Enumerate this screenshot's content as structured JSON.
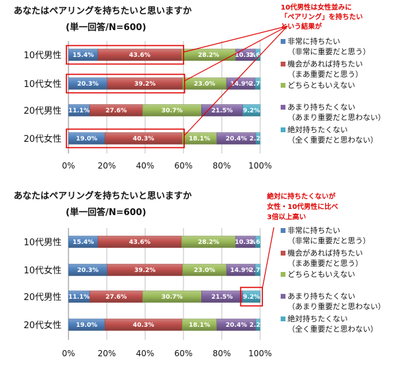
{
  "charts": [
    {
      "type": "bar",
      "stacked": true,
      "orientation": "horizontal",
      "title": "あなたはペアリングを持ちたいと思いますか",
      "subtitle": "(単一回答/N=600)",
      "categories": [
        "10代男性",
        "10代女性",
        "20代男性",
        "20代女性"
      ],
      "series": [
        {
          "name": "非常に持ちたい",
          "sub": "（非常に重要だと思う）",
          "color": "#4f81bd",
          "values": [
            15.4,
            20.3,
            11.1,
            19.0
          ]
        },
        {
          "name": "機会があれば持ちたい",
          "sub": "（まあ重要だと思う）",
          "color": "#c0504d",
          "values": [
            43.6,
            39.2,
            27.6,
            40.3
          ]
        },
        {
          "name": "どちらともいえない",
          "sub": "",
          "color": "#9bbb59",
          "values": [
            28.2,
            23.0,
            30.7,
            18.1
          ]
        },
        {
          "name": "あまり持ちたくない",
          "sub": "（あまり重要だと思わない）",
          "color": "#8064a2",
          "values": [
            10.3,
            14.9,
            21.5,
            20.4
          ]
        },
        {
          "name": "絶対持ちたくない",
          "sub": "（全く重要だと思わない）",
          "color": "#4bacc6",
          "values": [
            2.6,
            2.7,
            9.2,
            2.2
          ]
        }
      ],
      "xlim": [
        0,
        100
      ],
      "xticks": [
        "0%",
        "20%",
        "40%",
        "60%",
        "80%",
        "100%"
      ],
      "annotation": {
        "lines": [
          "10代男性は女性並みに",
          "「ペアリング」を持ちたい",
          "という結果が"
        ]
      },
      "highlight_series": [
        0,
        1
      ],
      "highlight_rows": [
        0,
        1,
        3
      ]
    },
    {
      "type": "bar",
      "stacked": true,
      "orientation": "horizontal",
      "title": "あなたはペアリングを持ちたいと思いますか",
      "subtitle": "(単一回答/N=600)",
      "categories": [
        "10代男性",
        "10代女性",
        "20代男性",
        "20代女性"
      ],
      "series": [
        {
          "name": "非常に持ちたい",
          "sub": "（非常に重要だと思う）",
          "color": "#4f81bd",
          "values": [
            15.4,
            20.3,
            11.1,
            19.0
          ]
        },
        {
          "name": "機会があれば持ちたい",
          "sub": "（まあ重要だと思う）",
          "color": "#c0504d",
          "values": [
            43.6,
            39.2,
            27.6,
            40.3
          ]
        },
        {
          "name": "どちらともいえない",
          "sub": "",
          "color": "#9bbb59",
          "values": [
            28.2,
            23.0,
            30.7,
            18.1
          ]
        },
        {
          "name": "あまり持ちたくない",
          "sub": "（あまり重要だと思わない）",
          "color": "#8064a2",
          "values": [
            10.3,
            14.9,
            21.5,
            20.4
          ]
        },
        {
          "name": "絶対持ちたくない",
          "sub": "（全く重要だと思わない）",
          "color": "#4bacc6",
          "values": [
            2.6,
            2.7,
            9.2,
            2.2
          ]
        }
      ],
      "xlim": [
        0,
        100
      ],
      "xticks": [
        "0%",
        "20%",
        "40%",
        "60%",
        "80%",
        "100%"
      ],
      "annotation": {
        "lines": [
          "絶対に持ちたくないが",
          "女性・10代男性に比べ",
          "3倍以上高い"
        ]
      },
      "highlight_series": [
        4
      ],
      "highlight_rows": [
        2
      ]
    }
  ]
}
